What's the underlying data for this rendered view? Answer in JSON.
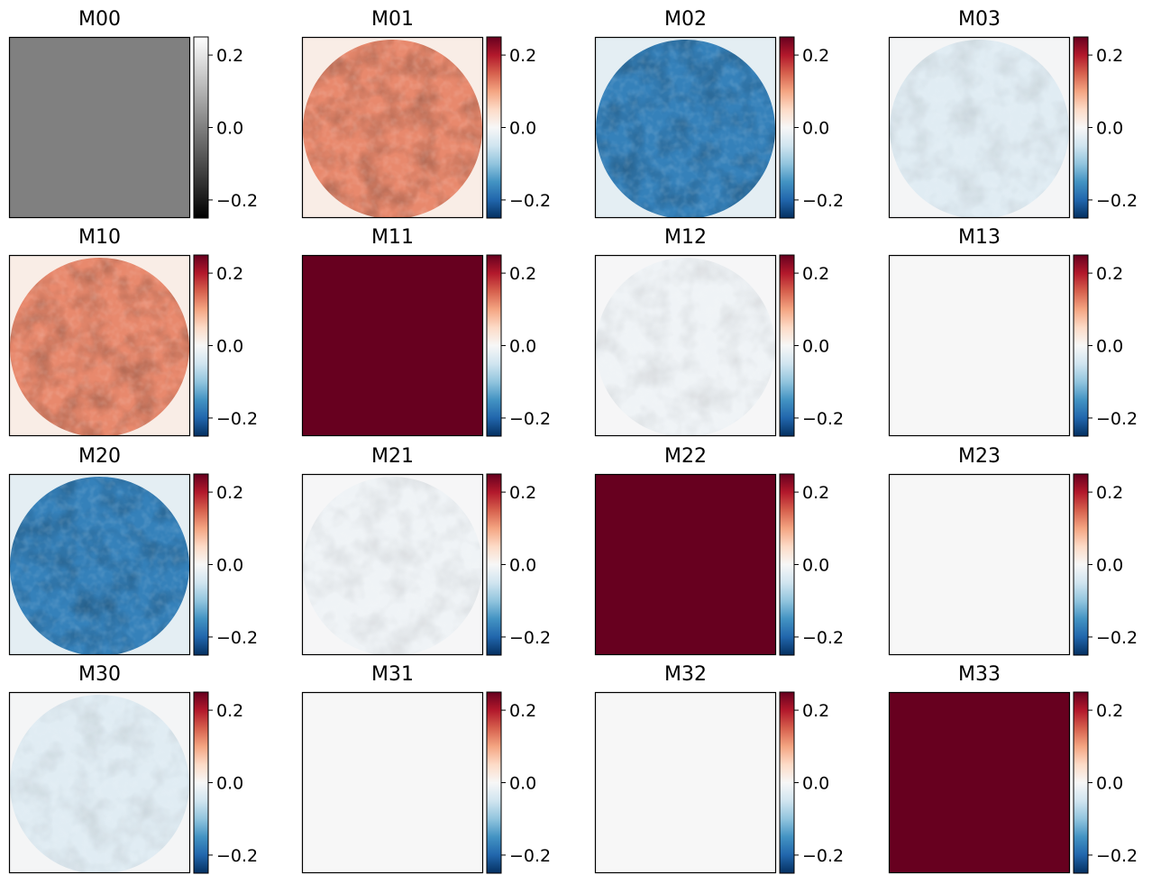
{
  "chart_data": {
    "type": "heatmap",
    "title": "",
    "layout": "4x4 grid of images, each with its own colorbar",
    "shared": {
      "colorbar_ticks": [
        0.2,
        0.0,
        -0.2
      ],
      "colorbar_tick_labels": [
        "0.2",
        "0.0",
        "−0.2"
      ],
      "vmin": -0.25,
      "vmax": 0.25,
      "axes_ticks_visible": false
    },
    "panels": [
      {
        "title": "M00",
        "colormap": "gray",
        "mean_value": 0.0,
        "content": "uniform"
      },
      {
        "title": "M01",
        "colormap": "RdBu_r",
        "mean_value": 0.12,
        "content": "circular-aperture"
      },
      {
        "title": "M02",
        "colormap": "RdBu_r",
        "mean_value": -0.17,
        "content": "circular-aperture"
      },
      {
        "title": "M03",
        "colormap": "RdBu_r",
        "mean_value": -0.03,
        "content": "circular-aperture-faint"
      },
      {
        "title": "M10",
        "colormap": "RdBu_r",
        "mean_value": 0.12,
        "content": "circular-aperture"
      },
      {
        "title": "M11",
        "colormap": "RdBu_r",
        "mean_value": 1.0,
        "content": "uniform"
      },
      {
        "title": "M12",
        "colormap": "RdBu_r",
        "mean_value": -0.01,
        "content": "circular-aperture-faint"
      },
      {
        "title": "M13",
        "colormap": "RdBu_r",
        "mean_value": 0.0,
        "content": "uniform"
      },
      {
        "title": "M20",
        "colormap": "RdBu_r",
        "mean_value": -0.17,
        "content": "circular-aperture"
      },
      {
        "title": "M21",
        "colormap": "RdBu_r",
        "mean_value": -0.01,
        "content": "circular-aperture-faint"
      },
      {
        "title": "M22",
        "colormap": "RdBu_r",
        "mean_value": 1.0,
        "content": "uniform"
      },
      {
        "title": "M23",
        "colormap": "RdBu_r",
        "mean_value": 0.0,
        "content": "uniform"
      },
      {
        "title": "M30",
        "colormap": "RdBu_r",
        "mean_value": -0.03,
        "content": "circular-aperture-faint"
      },
      {
        "title": "M31",
        "colormap": "RdBu_r",
        "mean_value": 0.0,
        "content": "uniform"
      },
      {
        "title": "M32",
        "colormap": "RdBu_r",
        "mean_value": 0.0,
        "content": "uniform"
      },
      {
        "title": "M33",
        "colormap": "RdBu_r",
        "mean_value": 1.0,
        "content": "uniform"
      }
    ]
  }
}
